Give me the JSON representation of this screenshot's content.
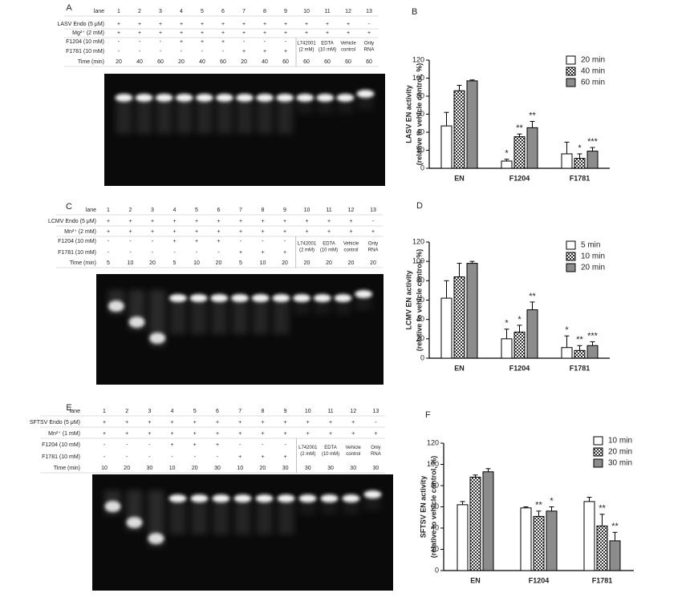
{
  "gels": [
    {
      "panel": "A",
      "lane_header": "lane",
      "lanes": [
        1,
        2,
        3,
        4,
        5,
        6,
        7,
        8,
        9,
        10,
        11,
        12,
        13
      ],
      "rows": [
        {
          "label": "LASV Endo (5 μM)",
          "marks": [
            "+",
            "+",
            "+",
            "+",
            "+",
            "+",
            "+",
            "+",
            "+",
            "+",
            "+",
            "+",
            "-"
          ]
        },
        {
          "label": "Mg²⁺ (2 mM)",
          "marks": [
            "+",
            "+",
            "+",
            "+",
            "+",
            "+",
            "+",
            "+",
            "+",
            "+",
            "+",
            "+",
            "+"
          ]
        },
        {
          "label": "F1204 (10 mM)",
          "marks": [
            "-",
            "-",
            "-",
            "+",
            "+",
            "+",
            "-",
            "-",
            "-"
          ]
        },
        {
          "label": "F1781 (10 mM)",
          "marks": [
            "-",
            "-",
            "-",
            "-",
            "-",
            "-",
            "+",
            "+",
            "+"
          ]
        },
        {
          "label": "Time (min)",
          "marks": [
            20,
            40,
            60,
            20,
            40,
            60,
            20,
            40,
            60,
            60,
            60,
            60,
            60
          ]
        }
      ],
      "lane_notes": [
        [
          "L742001",
          "(2 mM)"
        ],
        [
          "EDTA",
          "(10 mM)"
        ],
        [
          "Vehicle",
          "control"
        ],
        [
          "Only",
          "RNA"
        ]
      ]
    },
    {
      "panel": "C",
      "lane_header": "lane",
      "lanes": [
        1,
        2,
        3,
        4,
        5,
        6,
        7,
        8,
        9,
        10,
        11,
        12,
        13
      ],
      "rows": [
        {
          "label": "LCMV Endo (5 μM)",
          "marks": [
            "+",
            "+",
            "+",
            "+",
            "+",
            "+",
            "+",
            "+",
            "+",
            "+",
            "+",
            "+",
            "-"
          ]
        },
        {
          "label": "Mn²⁺ (2 mM)",
          "marks": [
            "+",
            "+",
            "+",
            "+",
            "+",
            "+",
            "+",
            "+",
            "+",
            "+",
            "+",
            "+",
            "+"
          ]
        },
        {
          "label": "F1204 (10 mM)",
          "marks": [
            "-",
            "-",
            "-",
            "+",
            "+",
            "+",
            "-",
            "-",
            "-"
          ]
        },
        {
          "label": "F1781 (10 mM)",
          "marks": [
            "-",
            "-",
            "-",
            "-",
            "-",
            "-",
            "+",
            "+",
            "+"
          ]
        },
        {
          "label": "Time (min)",
          "marks": [
            5,
            10,
            20,
            5,
            10,
            20,
            5,
            10,
            20,
            20,
            20,
            20,
            20
          ]
        }
      ],
      "lane_notes": [
        [
          "L742001",
          "(2 mM)"
        ],
        [
          "EDTA",
          "(10 mM)"
        ],
        [
          "Vehicle",
          "control"
        ],
        [
          "Only",
          "RNA"
        ]
      ]
    },
    {
      "panel": "E",
      "lane_header": "lane",
      "lanes": [
        1,
        2,
        3,
        4,
        5,
        6,
        7,
        8,
        9,
        10,
        11,
        12,
        13
      ],
      "rows": [
        {
          "label": "SFTSV Endo (5 μM)",
          "marks": [
            "+",
            "+",
            "+",
            "+",
            "+",
            "+",
            "+",
            "+",
            "+",
            "+",
            "+",
            "+",
            "-"
          ]
        },
        {
          "label": "Mn²⁺ (1 mM)",
          "marks": [
            "+",
            "+",
            "+",
            "+",
            "+",
            "+",
            "+",
            "+",
            "+",
            "+",
            "+",
            "+",
            "+"
          ]
        },
        {
          "label": "F1204 (10 mM)",
          "marks": [
            "-",
            "-",
            "-",
            "+",
            "+",
            "+",
            "-",
            "-",
            "-"
          ]
        },
        {
          "label": "F1781 (10 mM)",
          "marks": [
            "-",
            "-",
            "-",
            "-",
            "-",
            "-",
            "+",
            "+",
            "+"
          ]
        },
        {
          "label": "Time (min)",
          "marks": [
            10,
            20,
            30,
            10,
            20,
            30,
            10,
            20,
            30,
            30,
            30,
            30,
            30
          ]
        }
      ],
      "lane_notes": [
        [
          "L742001",
          "(2 mM)"
        ],
        [
          "EDTA",
          "(10 mM)"
        ],
        [
          "Vehicle",
          "control"
        ],
        [
          "Only",
          "RNA"
        ]
      ]
    }
  ],
  "chart_data": [
    {
      "type": "bar",
      "panel": "B",
      "ylabel": [
        "LASV EN activity",
        "(relative to vehicle control, %)"
      ],
      "categories": [
        "EN",
        "F1204",
        "F1781"
      ],
      "ylim": [
        0,
        120
      ],
      "yticks": [
        0,
        20,
        40,
        60,
        80,
        100,
        120
      ],
      "series": [
        {
          "name": "20 min",
          "color": "#ffffff",
          "values": [
            47,
            8,
            16
          ],
          "errors": [
            15,
            2,
            13
          ],
          "annotations": [
            null,
            "*",
            null
          ]
        },
        {
          "name": "40 min",
          "color": "#555555",
          "pattern": "checker",
          "values": [
            86,
            35,
            11
          ],
          "errors": [
            6,
            3,
            5
          ],
          "annotations": [
            null,
            "**",
            "*"
          ]
        },
        {
          "name": "60 min",
          "color": "#8c8c8c",
          "values": [
            97,
            45,
            19
          ],
          "errors": [
            1,
            7,
            4
          ],
          "annotations": [
            null,
            "**",
            "***"
          ]
        }
      ]
    },
    {
      "type": "bar",
      "panel": "D",
      "ylabel": [
        "LCMV EN activity",
        "(relative to vehicle control, %)"
      ],
      "categories": [
        "EN",
        "F1204",
        "F1781"
      ],
      "ylim": [
        0,
        120
      ],
      "yticks": [
        0,
        20,
        40,
        60,
        80,
        100,
        120
      ],
      "series": [
        {
          "name": "5 min",
          "color": "#ffffff",
          "values": [
            62,
            20,
            11
          ],
          "errors": [
            18,
            10,
            12
          ],
          "annotations": [
            null,
            "*",
            "*"
          ]
        },
        {
          "name": "10 min",
          "color": "#555555",
          "pattern": "checker",
          "values": [
            84,
            27,
            8
          ],
          "errors": [
            14,
            7,
            5
          ],
          "annotations": [
            null,
            "*",
            "**"
          ]
        },
        {
          "name": "20 min",
          "color": "#8c8c8c",
          "values": [
            98,
            50,
            13
          ],
          "errors": [
            2,
            8,
            4
          ],
          "annotations": [
            null,
            "**",
            "***"
          ]
        }
      ]
    },
    {
      "type": "bar",
      "panel": "F",
      "ylabel": [
        "SFTSV EN activity",
        "(relative to vehicle control, %)"
      ],
      "categories": [
        "EN",
        "F1204",
        "F1781"
      ],
      "ylim": [
        0,
        120
      ],
      "yticks": [
        0,
        20,
        40,
        60,
        80,
        100,
        120
      ],
      "series": [
        {
          "name": "10 min",
          "color": "#ffffff",
          "values": [
            62,
            59,
            65
          ],
          "errors": [
            3,
            1,
            4
          ],
          "annotations": [
            null,
            null,
            null
          ]
        },
        {
          "name": "20 min",
          "color": "#555555",
          "pattern": "checker",
          "values": [
            88,
            51,
            42
          ],
          "errors": [
            2,
            5,
            11
          ],
          "annotations": [
            null,
            "**",
            "**"
          ]
        },
        {
          "name": "30 min",
          "color": "#8c8c8c",
          "values": [
            93,
            56,
            28
          ],
          "errors": [
            3,
            4,
            8
          ],
          "annotations": [
            null,
            "*",
            "**"
          ]
        }
      ]
    }
  ]
}
